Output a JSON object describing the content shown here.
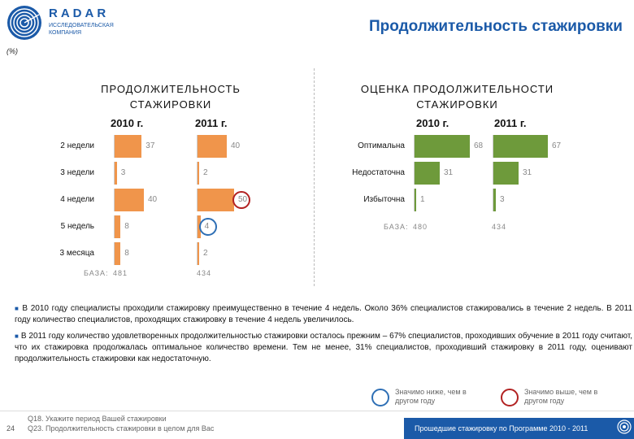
{
  "header": {
    "logo_name": "RADAR",
    "logo_sub": "ИССЛЕДОВАТЕЛЬСКАЯ КОМПАНИЯ",
    "title": "Продолжительность стажировки",
    "unit": "(%)"
  },
  "left_panel": {
    "title_line1": "ПРОДОЛЖИТЕЛЬНОСТЬ",
    "title_line2": "СТАЖИРОВКИ",
    "year1": "2010 г.",
    "year2": "2011 г.",
    "base_label": "БАЗА:",
    "base1": "481",
    "base2": "434"
  },
  "right_panel": {
    "title_line1": "ОЦЕНКА ПРОДОЛЖИТЕЛЬНОСТИ",
    "title_line2": "СТАЖИРОВКИ",
    "year1": "2010 г.",
    "year2": "2011 г.",
    "base_label": "БАЗА:",
    "base1": "480",
    "base2": "434"
  },
  "chart_data": [
    {
      "type": "bar",
      "title": "ПРОДОЛЖИТЕЛЬНОСТЬ СТАЖИРОВКИ",
      "categories": [
        "2 недели",
        "3 недели",
        "4 недели",
        "5 недель",
        "3 месяца"
      ],
      "series": [
        {
          "name": "2010 г.",
          "values": [
            37,
            3,
            40,
            8,
            8
          ]
        },
        {
          "name": "2011 г.",
          "values": [
            40,
            2,
            50,
            4,
            2
          ]
        }
      ],
      "highlight": {
        "2011 г.": {
          "4 недели": "higher",
          "5 недель": "lower"
        }
      },
      "color": "#f0954b"
    },
    {
      "type": "bar",
      "title": "ОЦЕНКА ПРОДОЛЖИТЕЛЬНОСТИ СТАЖИРОВКИ",
      "categories": [
        "Оптимальна",
        "Недостаточна",
        "Избыточна"
      ],
      "series": [
        {
          "name": "2010 г.",
          "values": [
            68,
            31,
            1
          ]
        },
        {
          "name": "2011 г.",
          "values": [
            67,
            31,
            3
          ]
        }
      ],
      "color": "#6e9a3b"
    }
  ],
  "text": {
    "para1": "В 2010 году специалисты проходили стажировку преимущественно в течение 4 недель. Около 36% специалистов стажировались в течение 2 недель. В 2011 году количество специалистов, проходящих стажировку в течение 4 недель увеличилось.",
    "para2": "В 2011 году количество удовлетворенных продолжительностью стажировки осталось прежним – 67% специалистов, проходивших обучение в 2011 году считают, что их стажировка продолжалась оптимальное количество времени. Тем не менее, 31% специалистов, проходивший стажировку в 2011 году, оценивают продолжительность стажировки как недостаточную."
  },
  "legend": {
    "lower": "Значимо ниже, чем в другом году",
    "higher": "Значимо выше, чем в другом году",
    "lower_color": "#2e6fb5",
    "higher_color": "#b22222"
  },
  "footer": {
    "page": "24",
    "q1": "Q18. Укажите период Вашей стажировки",
    "q2": "Q23. Продолжительность стажировки в целом для Вас",
    "right_text": "Прошедшие стажировку по Программе 2010 - 2011",
    "accent": "#1b5aa8"
  }
}
